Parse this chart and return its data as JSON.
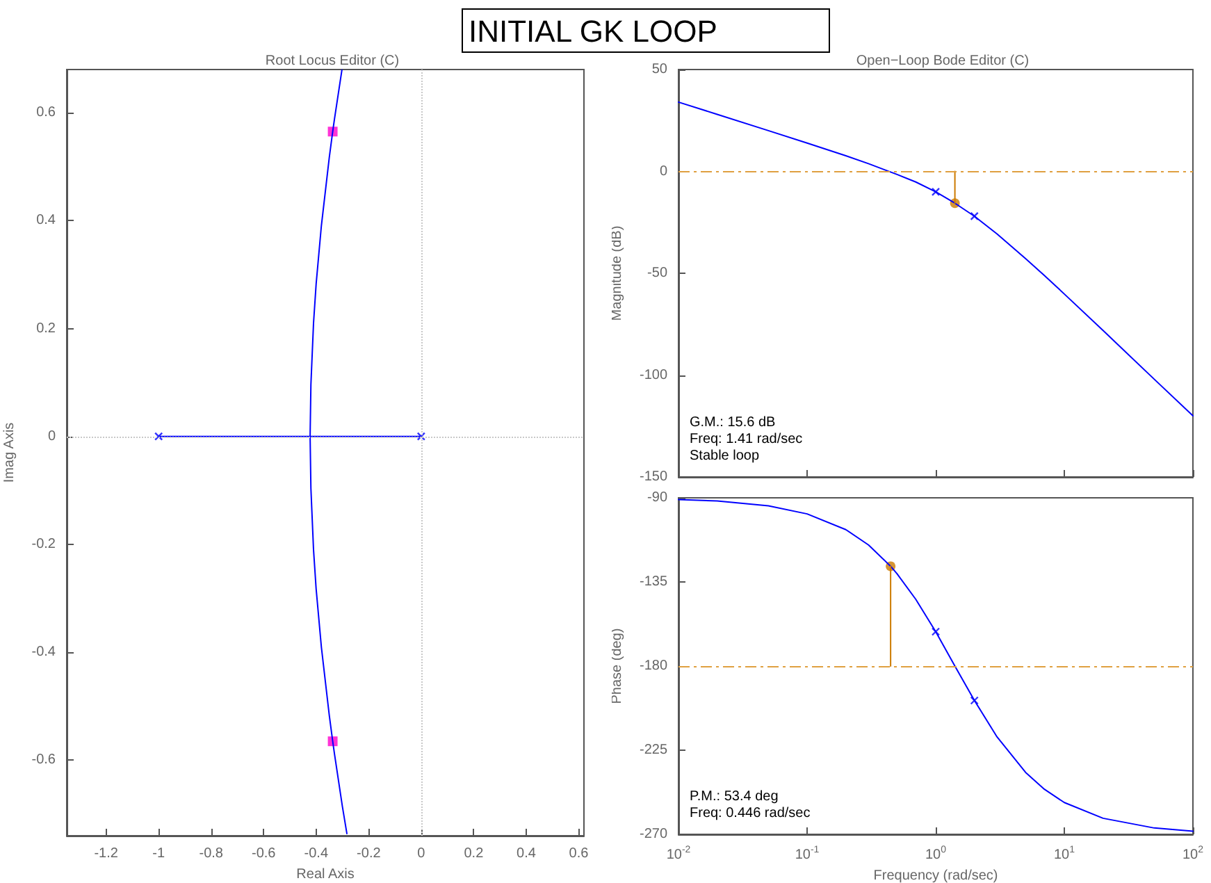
{
  "chart_data": [
    {
      "type": "line",
      "title": "INITIAL GK LOOP",
      "subtitle": "Root Locus Editor (C)",
      "xlabel": "Real Axis",
      "ylabel": "Imag Axis",
      "xlim": [
        -1.35,
        0.62
      ],
      "xticks": [
        -1.2,
        -1,
        -0.8,
        -0.6,
        -0.4,
        -0.2,
        0,
        0.2,
        0.4,
        0.6
      ],
      "ylim": [
        -0.74,
        0.68
      ],
      "yticks": [
        -0.6,
        -0.4,
        -0.2,
        0,
        0.2,
        0.4,
        0.6
      ],
      "grid": false,
      "ref_lines": [
        {
          "axis": "x",
          "value": 0,
          "color": "#c8c8c8",
          "line_style": "dotted"
        },
        {
          "axis": "y",
          "value": 0,
          "color": "#c8c8c8",
          "line_style": "dotted"
        }
      ],
      "series": [
        {
          "color": "#0000ff",
          "marker": "none",
          "x": [
            -0.283,
            -0.3,
            -0.33,
            -0.337,
            -0.35,
            -0.38,
            -0.4,
            -0.41,
            -0.42,
            -0.423,
            -0.42,
            -0.41,
            -0.4,
            -0.38,
            -0.35,
            -0.337,
            -0.33,
            -0.302
          ],
          "values": [
            -0.736,
            -0.686,
            -0.589,
            -0.565,
            -0.517,
            -0.391,
            -0.283,
            -0.21,
            -0.096,
            0,
            0.096,
            0.21,
            0.283,
            0.391,
            0.517,
            0.565,
            0.589,
            0.679
          ]
        },
        {
          "color": "#0000ff",
          "marker": "none",
          "x": [
            -1,
            0
          ],
          "values": [
            0,
            0
          ]
        },
        {
          "type": "scatter",
          "color": "#0000ff",
          "marker": "cross",
          "x": [
            -1,
            0
          ],
          "values": [
            0,
            0
          ]
        },
        {
          "type": "scatter",
          "color": "#ff00cc",
          "marker": "square",
          "x": [
            -0.337,
            -0.337
          ],
          "values": [
            0.565,
            -0.565
          ]
        }
      ]
    },
    {
      "type": "line",
      "subtitle": "Open−Loop Bode Editor (C)",
      "ylabel": "Magnitude (dB)",
      "log": "x",
      "xlim": [
        0.01,
        100
      ],
      "xticks": [
        {
          "value": 0.01,
          "label": null
        },
        {
          "value": 0.1,
          "label": null
        },
        {
          "value": 1,
          "label": null
        },
        {
          "value": 10,
          "label": null
        },
        {
          "value": 100,
          "label": null
        }
      ],
      "ylim": [
        -150,
        50
      ],
      "yticks": [
        -150,
        -100,
        -50,
        0,
        50
      ],
      "tick_labels": "y",
      "grid": false,
      "annotations": [
        "G.M.: 15.6 dB",
        "Freq: 1.41 rad/sec",
        "Stable loop"
      ],
      "ref_lines": [
        {
          "axis": "y",
          "value": 0,
          "color": "#e0a040",
          "line_style": "dashed"
        }
      ],
      "series": [
        {
          "color": "#0000ff",
          "marker": "none",
          "x": [
            0.01,
            0.02,
            0.05,
            0.1,
            0.2,
            0.3,
            0.5,
            0.7,
            1,
            1.41,
            2,
            3,
            5,
            7,
            10,
            20,
            50,
            100
          ],
          "values": [
            34.0,
            28.0,
            20.0,
            13.9,
            7.7,
            3.8,
            -1.5,
            -5.2,
            -10.0,
            -15.6,
            -22.0,
            -30.7,
            -42.8,
            -51.1,
            -60.2,
            -78.1,
            -102.0,
            -120.0
          ]
        },
        {
          "type": "scatter",
          "color": "#0000ff",
          "marker": "cross",
          "x": [
            1,
            2
          ],
          "values": [
            -10.0,
            -22.0
          ]
        },
        {
          "color": "#cc7a00",
          "marker": "none",
          "x": [
            1.41,
            1.41
          ],
          "values": [
            0,
            -15.6
          ]
        },
        {
          "type": "scatter",
          "color": "#cc7a00",
          "marker": "circle",
          "x": [
            1.41
          ],
          "values": [
            -15.6
          ]
        }
      ]
    },
    {
      "type": "line",
      "xlabel": "Frequency (rad/sec)",
      "ylabel": "Phase (deg)",
      "log": "x",
      "xlim": [
        0.01,
        100
      ],
      "xticks": [
        {
          "value": 0.01,
          "label": "10$^{-2}$"
        },
        {
          "value": 0.1,
          "label": "10$^{-1}$"
        },
        {
          "value": 1,
          "label": "10$^{0}$"
        },
        {
          "value": 10,
          "label": "10$^{1}$"
        },
        {
          "value": 100,
          "label": "10$^{2}$"
        }
      ],
      "ylim": [
        -270,
        -90
      ],
      "yticks": [
        -270,
        -225,
        -180,
        -135,
        -90
      ],
      "grid": false,
      "annotations": [
        "P.M.: 53.4 deg",
        "Freq: 0.446 rad/sec"
      ],
      "ref_lines": [
        {
          "axis": "y",
          "value": -180,
          "color": "#e0a040",
          "line_style": "dashed"
        }
      ],
      "series": [
        {
          "color": "#0000ff",
          "marker": "none",
          "x": [
            0.01,
            0.02,
            0.05,
            0.1,
            0.2,
            0.3,
            0.446,
            0.5,
            0.7,
            1,
            1.41,
            2,
            3,
            5,
            7,
            10,
            20,
            50,
            100
          ],
          "values": [
            -90.9,
            -91.7,
            -94.3,
            -98.6,
            -107.0,
            -115.2,
            -126.6,
            -130.6,
            -144.3,
            -161.6,
            -180.0,
            -198.4,
            -217.9,
            -236.9,
            -245.9,
            -253.0,
            -261.4,
            -266.6,
            -268.3
          ]
        },
        {
          "type": "scatter",
          "color": "#0000ff",
          "marker": "cross",
          "x": [
            1,
            2
          ],
          "values": [
            -161.6,
            -198.4
          ]
        },
        {
          "color": "#cc7a00",
          "marker": "none",
          "x": [
            0.446,
            0.446
          ],
          "values": [
            -180,
            -126.6
          ]
        },
        {
          "type": "scatter",
          "color": "#cc7a00",
          "marker": "circle",
          "x": [
            0.446
          ],
          "values": [
            -126.6
          ]
        }
      ]
    }
  ]
}
